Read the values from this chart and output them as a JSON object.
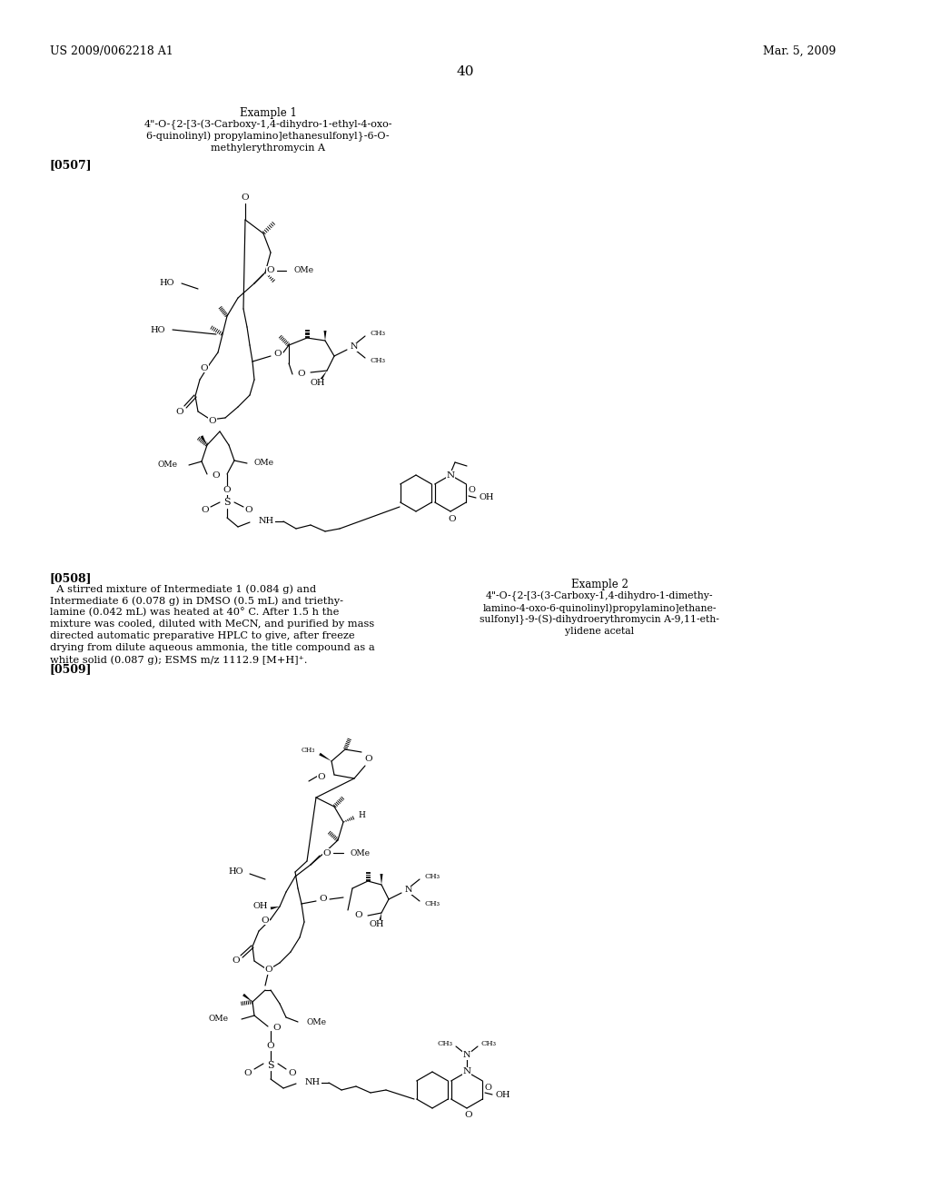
{
  "background_color": "#ffffff",
  "page_number": "40",
  "header_left": "US 2009/0062218 A1",
  "header_right": "Mar. 5, 2009",
  "example1_title": "Example 1",
  "example1_line1": "4\"-O-{2-[3-(3-Carboxy-1,4-dihydro-1-ethyl-4-oxo-",
  "example1_line2": "6-quinolinyl) propylamino]ethanesulfonyl}-6-O-",
  "example1_line3": "methylerythromycin A",
  "para0507": "[0507]",
  "para0508_label": "[0508]",
  "para0508_text": "  A stirred mixture of Intermediate 1 (0.084 g) and Intermediate 6 (0.078 g) in DMSO (0.5 mL) and triethy-lamine (0.042 mL) was heated at 40° C. After 1.5 h the mixture was cooled, diluted with MeCN, and purified by mass directed automatic preparative HPLC to give, after freeze drying from dilute aqueous ammonia, the title compound as a white solid (0.087 g); ESMS m/z 1112.9 [M+H]⁺.",
  "example2_title": "Example 2",
  "example2_line1": "4\"-O-{2-[3-(3-Carboxy-1,4-dihydro-1-dimethy-",
  "example2_line2": "lamino-4-oxo-6-quinolinyl)propylamino]ethane-",
  "example2_line3": "sulfonyl}-9-(S)-dihydroerythromycin A-9,11-eth-",
  "example2_line4": "ylidene acetal",
  "para0509": "[0509]",
  "figsize": [
    10.24,
    13.2
  ],
  "dpi": 100
}
